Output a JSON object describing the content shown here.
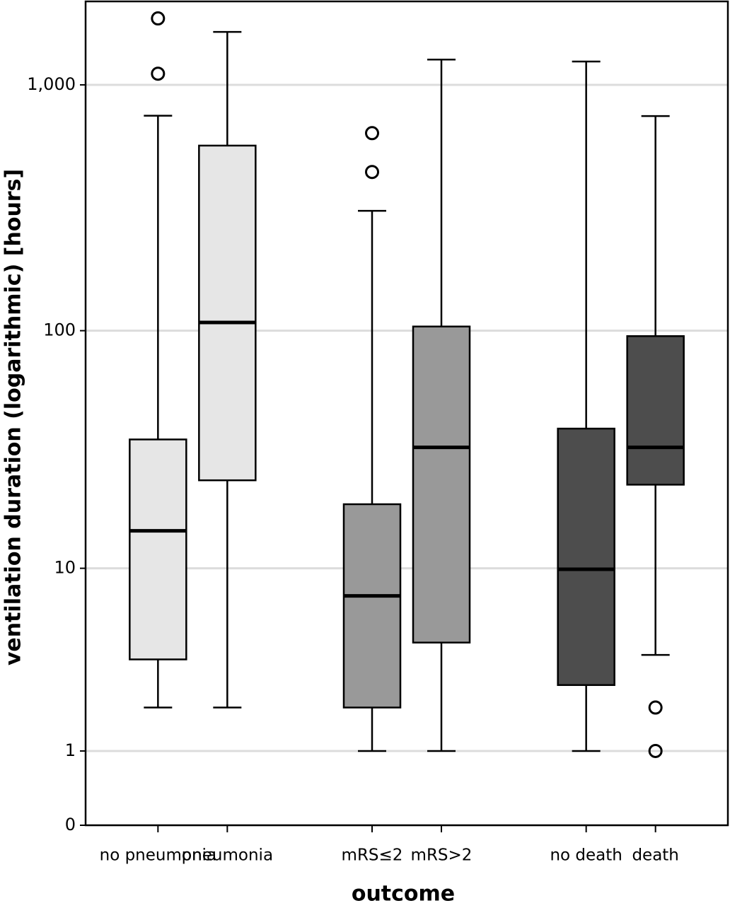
{
  "chart_data": {
    "type": "box",
    "x_label": "outcome",
    "y_label": "ventilation duration (logarithmic) [hours]",
    "categories": [
      "no pneumonia",
      "pneumonia",
      "mRS≤2",
      "mRS>2",
      "no death",
      "death"
    ],
    "colors": [
      "#e6e6e6",
      "#e6e6e6",
      "#999999",
      "#999999",
      "#4d4d4d",
      "#4d4d4d"
    ],
    "whisker_low": [
      2,
      2,
      1,
      1,
      1,
      3.9
    ],
    "q1": [
      3.7,
      24,
      2,
      4.5,
      2.7,
      23
    ],
    "median": [
      14.6,
      108,
      7.5,
      33,
      9.9,
      33
    ],
    "q3": [
      35.6,
      567,
      19,
      104,
      39.5,
      95
    ],
    "whisker_high": [
      750,
      1640,
      308,
      1267,
      1244,
      747
    ],
    "outliers": [
      [
        1860,
        1110
      ],
      [],
      [
        637,
        443
      ],
      [],
      [],
      [
        2,
        1
      ]
    ],
    "ylim": [
      0,
      2180
    ],
    "yticks": [
      0,
      1,
      10,
      100,
      {
        "value": 1000,
        "label": "1,000"
      }
    ],
    "ylog": true,
    "grid": true
  }
}
